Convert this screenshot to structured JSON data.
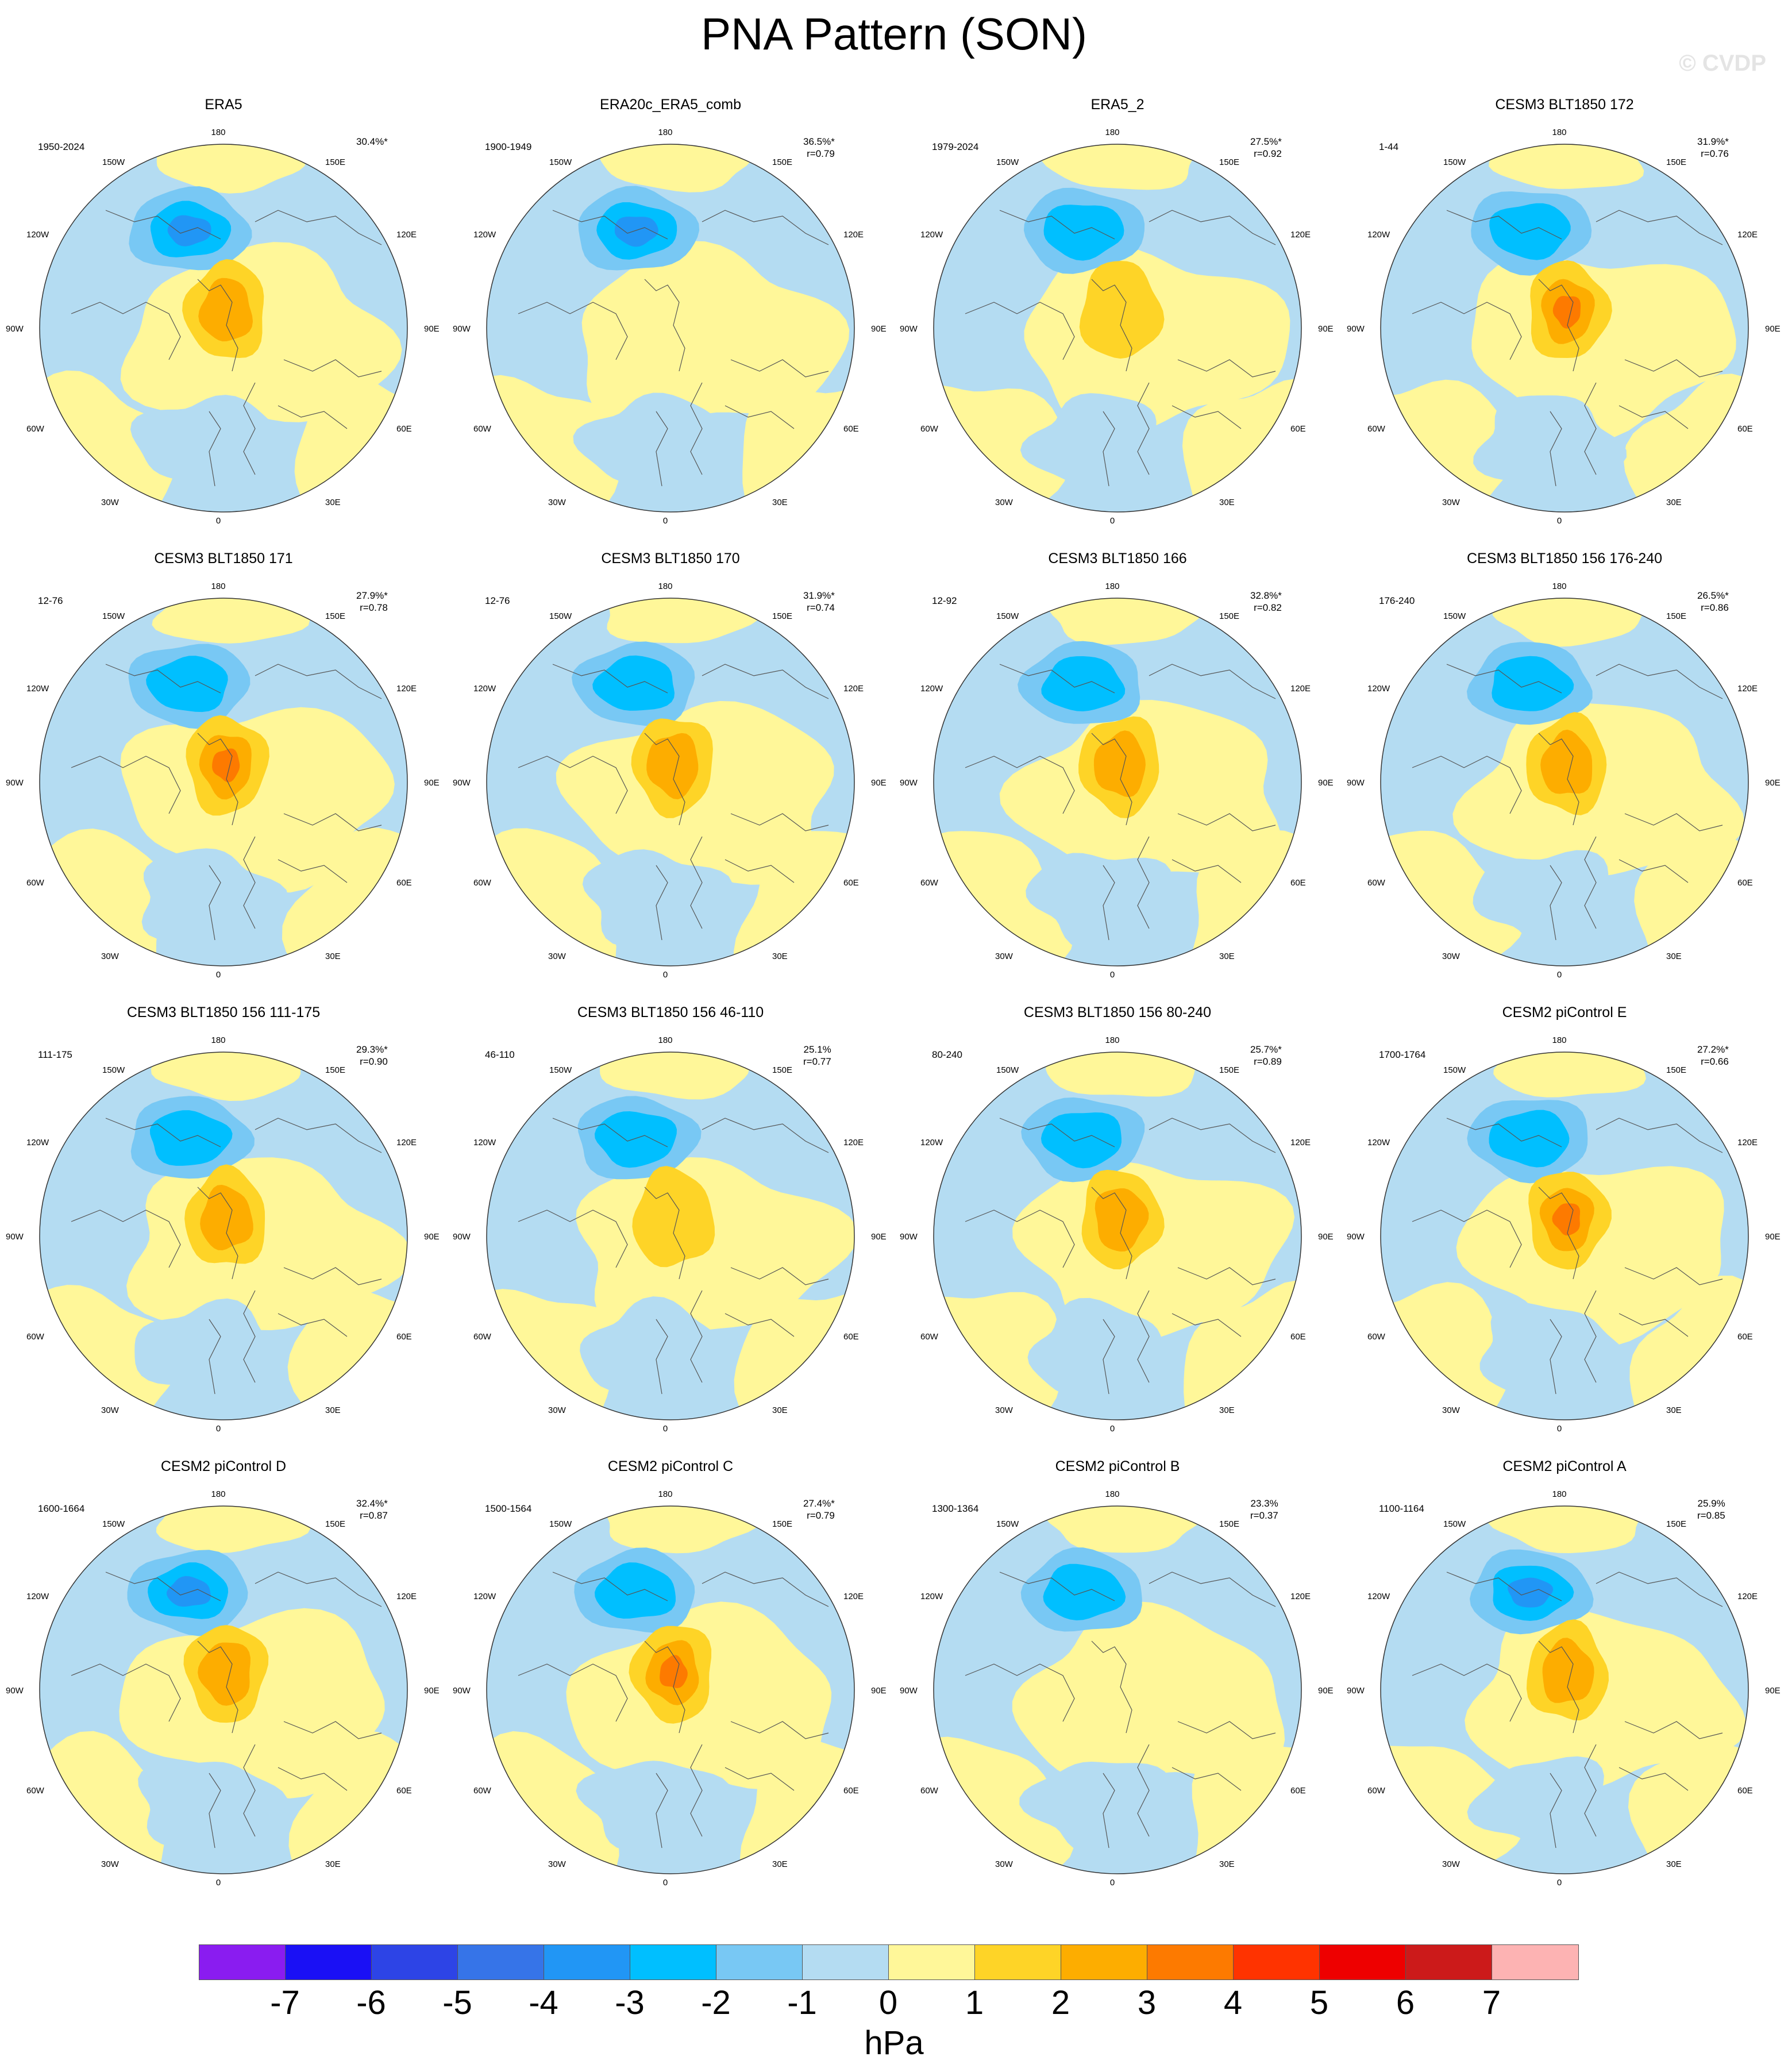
{
  "title": "PNA Pattern (SON)",
  "watermark": "© CVDP",
  "units": "hPa",
  "longitude_labels": {
    "top": "180",
    "bottom": "0",
    "left": "90W",
    "right": "90E",
    "upper_left_1": "150W",
    "upper_left_2": "120W",
    "upper_right_1": "150E",
    "upper_right_2": "120E",
    "lower_left_1": "60W",
    "lower_left_2": "30W",
    "lower_right_1": "60E",
    "lower_right_2": "30E"
  },
  "colorbar": {
    "colors": [
      "#8a1cf0",
      "#1a10f5",
      "#2d44e6",
      "#3674e8",
      "#2196f5",
      "#00bfff",
      "#78c8f4",
      "#b4dcf2",
      "#fff799",
      "#fed427",
      "#fdad00",
      "#fd7a00",
      "#ff3300",
      "#ee0000",
      "#cc1a1a",
      "#fdb3b3"
    ],
    "tick_labels": [
      "-7",
      "-6",
      "-5",
      "-4",
      "-3",
      "-2",
      "-1",
      "0",
      "1",
      "2",
      "3",
      "4",
      "5",
      "6",
      "7"
    ]
  },
  "panels": [
    {
      "title": "ERA5",
      "years": "1950-2024",
      "pct": "30.4%*",
      "r": "",
      "low_strength": 3,
      "high_strength": 2
    },
    {
      "title": "ERA20c_ERA5_comb",
      "years": "1900-1949",
      "pct": "36.5%*",
      "r": "r=0.79",
      "low_strength": 3,
      "high_strength": 0
    },
    {
      "title": "ERA5_2",
      "years": "1979-2024",
      "pct": "27.5%*",
      "r": "r=0.92",
      "low_strength": 2,
      "high_strength": 1
    },
    {
      "title": "CESM3 BLT1850 172",
      "years": "1-44",
      "pct": "31.9%*",
      "r": "r=0.76",
      "low_strength": 2,
      "high_strength": 3
    },
    {
      "title": "CESM3 BLT1850 171",
      "years": "12-76",
      "pct": "27.9%*",
      "r": "r=0.78",
      "low_strength": 2,
      "high_strength": 3
    },
    {
      "title": "CESM3 BLT1850 170",
      "years": "12-76",
      "pct": "31.9%*",
      "r": "r=0.74",
      "low_strength": 2,
      "high_strength": 2
    },
    {
      "title": "CESM3 BLT1850 166",
      "years": "12-92",
      "pct": "32.8%*",
      "r": "r=0.82",
      "low_strength": 2,
      "high_strength": 2
    },
    {
      "title": "CESM3 BLT1850 156 176-240",
      "years": "176-240",
      "pct": "26.5%*",
      "r": "r=0.86",
      "low_strength": 2,
      "high_strength": 2
    },
    {
      "title": "CESM3 BLT1850 156 111-175",
      "years": "111-175",
      "pct": "29.3%*",
      "r": "r=0.90",
      "low_strength": 2,
      "high_strength": 2
    },
    {
      "title": "CESM3 BLT1850 156 46-110",
      "years": "46-110",
      "pct": "25.1%",
      "r": "r=0.77",
      "low_strength": 2,
      "high_strength": 1
    },
    {
      "title": "CESM3 BLT1850 156 80-240",
      "years": "80-240",
      "pct": "25.7%*",
      "r": "r=0.89",
      "low_strength": 2,
      "high_strength": 2
    },
    {
      "title": "CESM2 piControl E",
      "years": "1700-1764",
      "pct": "27.2%*",
      "r": "r=0.66",
      "low_strength": 2,
      "high_strength": 3
    },
    {
      "title": "CESM2 piControl D",
      "years": "1600-1664",
      "pct": "32.4%*",
      "r": "r=0.87",
      "low_strength": 3,
      "high_strength": 2
    },
    {
      "title": "CESM2 piControl C",
      "years": "1500-1564",
      "pct": "27.4%*",
      "r": "r=0.79",
      "low_strength": 2,
      "high_strength": 3
    },
    {
      "title": "CESM2 piControl B",
      "years": "1300-1364",
      "pct": "23.3%",
      "r": "r=0.37",
      "low_strength": 2,
      "high_strength": 0
    },
    {
      "title": "CESM2 piControl A",
      "years": "1100-1164",
      "pct": "25.9%",
      "r": "r=0.85",
      "low_strength": 3,
      "high_strength": 2
    }
  ]
}
